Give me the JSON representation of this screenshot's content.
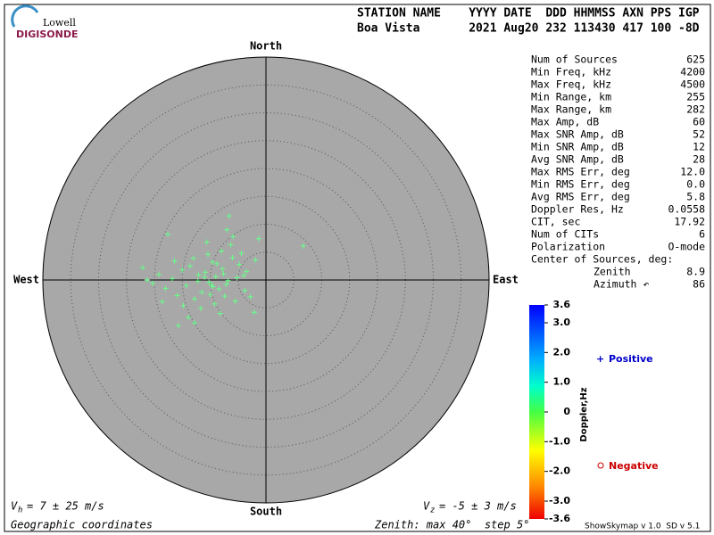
{
  "logo": {
    "top": "Lowell",
    "bottom": "DIGISONDE"
  },
  "header": {
    "row1": "STATION NAME    YYYY DATE  DDD HHMMSS AXN PPS IGP",
    "row2": "Boa Vista       2021 Aug20 232 113430 417 100 -8D"
  },
  "stats": [
    [
      "Num of Sources",
      "625"
    ],
    [
      "Min Freq, kHz",
      "4200"
    ],
    [
      "Max Freq, kHz",
      "4500"
    ],
    [
      "Min Range, km",
      "255"
    ],
    [
      "Max Range, km",
      "282"
    ],
    [
      "Max Amp, dB",
      "60"
    ],
    [
      "Max SNR Amp, dB",
      "52"
    ],
    [
      "Min SNR Amp, dB",
      "12"
    ],
    [
      "Avg SNR Amp, dB",
      "28"
    ],
    [
      "Max RMS Err, deg",
      "12.0"
    ],
    [
      "Min RMS Err, deg",
      "0.0"
    ],
    [
      "Avg RMS Err, deg",
      "5.8"
    ],
    [
      "Doppler Res, Hz",
      "0.0558"
    ],
    [
      "CIT, sec",
      "17.92"
    ],
    [
      "Num of CITs",
      "6"
    ],
    [
      "Polarization",
      "O-mode"
    ]
  ],
  "center_label": "Center of Sources, deg:",
  "center": [
    [
      "Zenith",
      "8.9"
    ],
    [
      "Azimuth ↶",
      "86"
    ]
  ],
  "chart_data": {
    "type": "scatter",
    "directions": {
      "north": "North",
      "east": "East",
      "south": "South",
      "west": "West"
    },
    "color": "#66ff88",
    "background": "#a8a8a8",
    "xlim": [
      -40,
      40
    ],
    "ylim": [
      -40,
      40
    ],
    "rticks": [
      5,
      10,
      15,
      20,
      25,
      30,
      35
    ],
    "x": [
      -6.6,
      -17.6,
      6.7,
      -1.3,
      -22.1,
      -21.3,
      -15.7,
      -12.8,
      -2.1,
      -3.5,
      -4.8,
      -5.2,
      -6.0,
      -7.1,
      -7.8,
      -8.4,
      -9.0,
      -9.6,
      -10.2,
      -10.9,
      -11.5,
      -12.1,
      -12.8,
      -13.6,
      -14.3,
      -15.0,
      -15.9,
      -16.8,
      -18.0,
      -19.2,
      -20.3,
      -8.0,
      -9.2,
      -10.4,
      -11.7,
      -7.4,
      -6.3,
      -5.5,
      -4.4,
      -3.8,
      -13.0,
      -14.8,
      -12.2,
      -10.0,
      -8.8,
      -7.6,
      -6.8,
      -9.5,
      -11.0,
      -4.0,
      -2.8,
      -1.9,
      -16.4,
      -18.6,
      -5.9,
      -8.2,
      -10.6,
      -13.9,
      -7.0,
      -9.8
    ],
    "values": [
      11.5,
      8.2,
      6.1,
      7.4,
      2.2,
      0,
      -8.2,
      -7.7,
      -5.8,
      1.5,
      2.8,
      0.4,
      4.0,
      -0.8,
      2.0,
      -1.6,
      0.6,
      3.2,
      -0.4,
      1.4,
      -2.2,
      0.9,
      -3.4,
      2.5,
      -1.0,
      1.8,
      -2.8,
      0.2,
      -1.5,
      1.0,
      -0.6,
      5.2,
      -4.3,
      4.6,
      -5.1,
      -2.9,
      6.3,
      -3.8,
      4.8,
      -1.9,
      3.9,
      -4.6,
      -0.2,
      -2.6,
      2.9,
      1.1,
      -0.1,
      -1.2,
      0.5,
      0.8,
      -3.0,
      3.6,
      3.4,
      -3.9,
      7.8,
      -6.0,
      6.8,
      -6.7,
      9.0,
      -0.9
    ]
  },
  "colorbar": {
    "label": "Doppler,Hz",
    "lim": [
      -3.6,
      3.6
    ],
    "ticks": [
      3.6,
      {
        "value": 3,
        "label": "3.0"
      },
      {
        "value": 2,
        "label": "2.0"
      },
      {
        "value": 1,
        "label": "1.0"
      },
      0,
      {
        "value": -1,
        "label": "-1.0"
      },
      {
        "value": -2,
        "label": "-2.0"
      },
      {
        "value": -3,
        "label": "-3.0"
      },
      -3.6
    ]
  },
  "legend": {
    "positive": "Positive",
    "negative": "Negative"
  },
  "footer": {
    "vh": {
      "symbol": "V",
      "sub": "h",
      "text": "= 7 ± 25 m/s"
    },
    "vz": {
      "symbol": "V",
      "sub": "z",
      "text": "= -5 ± 3 m/s"
    },
    "coords": "Geographic coordinates",
    "zenith": "Zenith: max 40°  step 5°",
    "version": "ShowSkymap v 1.0  SD v 5.1"
  }
}
